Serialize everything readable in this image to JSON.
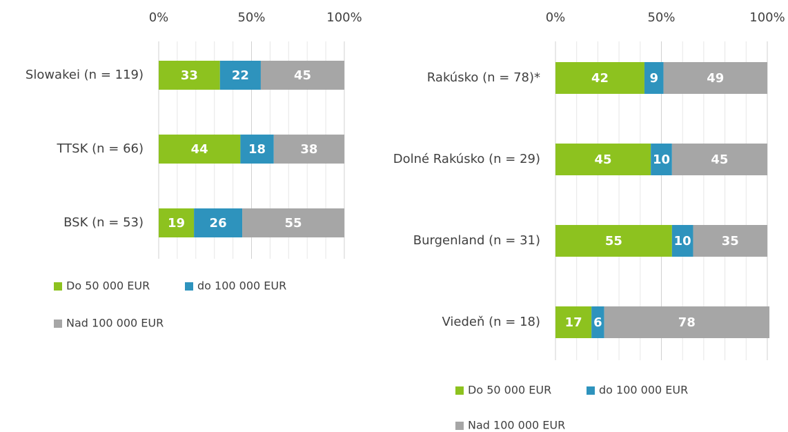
{
  "chart_data": [
    {
      "type": "bar",
      "orientation": "horizontal",
      "stacked": true,
      "categories": [
        "Slowakei (n = 119)",
        "TTSK (n = 66)",
        "BSK (n = 53)"
      ],
      "series": [
        {
          "name": "Do 50 000 EUR",
          "color": "#8dc21f",
          "values": [
            33,
            44,
            19
          ]
        },
        {
          "name": "do 100 000 EUR",
          "color": "#2e93bd",
          "values": [
            22,
            18,
            26
          ]
        },
        {
          "name": "Nad 100 000 EUR",
          "color": "#a6a6a6",
          "values": [
            45,
            38,
            55
          ]
        }
      ],
      "xlim": [
        0,
        100
      ],
      "xticks": [
        {
          "value": 0,
          "label": "0%"
        },
        {
          "value": 50,
          "label": "50%"
        },
        {
          "value": 100,
          "label": "100%"
        }
      ],
      "minor_xticks": [
        10,
        20,
        30,
        40,
        60,
        70,
        80,
        90
      ],
      "grid": true,
      "legend": "bottom"
    },
    {
      "type": "bar",
      "orientation": "horizontal",
      "stacked": true,
      "categories": [
        "Rakúsko (n = 78)*",
        "Dolné Rakúsko   (n = 29)",
        "Burgenland (n = 31)",
        "Viedeň (n = 18)"
      ],
      "series": [
        {
          "name": "Do 50 000 EUR",
          "color": "#8dc21f",
          "values": [
            42,
            45,
            55,
            17
          ]
        },
        {
          "name": "do 100 000 EUR",
          "color": "#2e93bd",
          "values": [
            9,
            10,
            10,
            6
          ]
        },
        {
          "name": "Nad 100 000 EUR",
          "color": "#a6a6a6",
          "values": [
            49,
            45,
            35,
            78
          ]
        }
      ],
      "xlim": [
        0,
        100
      ],
      "xticks": [
        {
          "value": 0,
          "label": "0%"
        },
        {
          "value": 50,
          "label": "50%"
        },
        {
          "value": 100,
          "label": "100%"
        }
      ],
      "minor_xticks": [
        10,
        20,
        30,
        40,
        60,
        70,
        80,
        90
      ],
      "grid": true,
      "legend": "bottom"
    }
  ]
}
